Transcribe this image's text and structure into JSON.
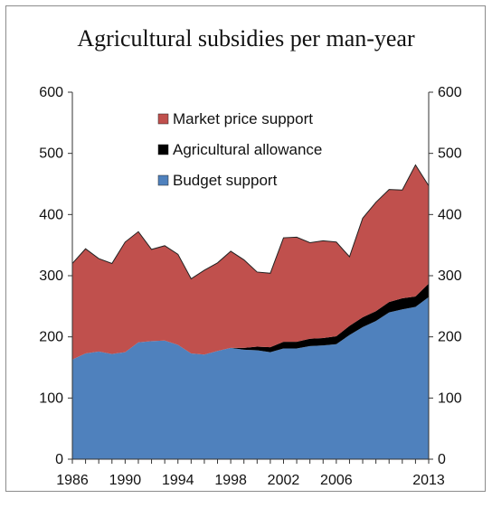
{
  "chart_data": {
    "type": "area",
    "title": "Agricultural  subsidies per man-year",
    "xlabel": "",
    "ylabel": "",
    "x": [
      1986,
      1987,
      1988,
      1989,
      1990,
      1991,
      1992,
      1993,
      1994,
      1995,
      1996,
      1997,
      1998,
      1999,
      2000,
      2001,
      2002,
      2003,
      2004,
      2005,
      2006,
      2007,
      2008,
      2009,
      2010,
      2011,
      2012,
      2013
    ],
    "x_tick_labels": [
      "1986",
      "1990",
      "1994",
      "1998",
      "2002",
      "2006",
      "2013"
    ],
    "x_tick_years": [
      1986,
      1990,
      1994,
      1998,
      2002,
      2006,
      2013
    ],
    "ylim": [
      0,
      600
    ],
    "y_ticks": [
      0,
      100,
      200,
      300,
      400,
      500,
      600
    ],
    "secondary_axis": true,
    "stacked": true,
    "legend_position": "upper-center",
    "series": [
      {
        "name": "Budget support",
        "color": "#4f81bd",
        "values": [
          163,
          173,
          176,
          172,
          175,
          191,
          193,
          194,
          187,
          173,
          171,
          177,
          182,
          179,
          178,
          175,
          181,
          181,
          185,
          186,
          188,
          203,
          216,
          226,
          240,
          245,
          249,
          265
        ]
      },
      {
        "name": "Agricultural allowance",
        "color": "#000000",
        "values": [
          0,
          0,
          0,
          0,
          0,
          0,
          0,
          0,
          0,
          0,
          0,
          0,
          0,
          3,
          6,
          8,
          11,
          11,
          12,
          12,
          13,
          15,
          16,
          16,
          17,
          18,
          17,
          22
        ]
      },
      {
        "name": "Market price support",
        "color": "#c0504d",
        "values": [
          157,
          171,
          152,
          148,
          180,
          181,
          150,
          155,
          148,
          122,
          138,
          144,
          158,
          144,
          122,
          121,
          170,
          171,
          157,
          159,
          154,
          113,
          162,
          178,
          184,
          177,
          215,
          160
        ]
      }
    ]
  }
}
